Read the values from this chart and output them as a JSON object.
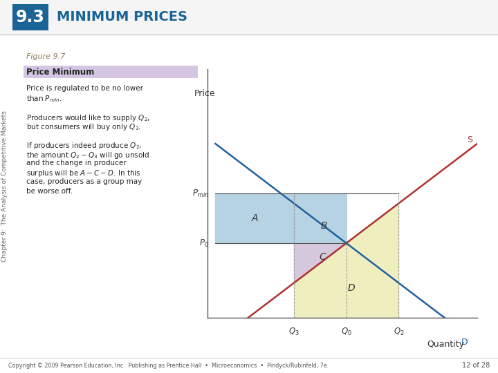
{
  "title_box_text": "9.3",
  "title_text": "MINIMUM PRICES",
  "subtitle_text": "Figure 9.7",
  "box_label": "Price Minimum",
  "side_label": "Chapter 9:  The Analysis of Competitive Markets",
  "footer": "Copyright © 2009 Pearson Education, Inc.  Publishing as Prentice Hall  •  Microeconomics  •  Pindyck/Rubinfeld, 7e.",
  "footer_right": "12 of 28",
  "xlabel": "Quantity",
  "ylabel": "Price",
  "supply_label": "S",
  "demand_label": "D",
  "q3": 3,
  "q0": 5,
  "q2": 7,
  "p0": 3,
  "pmin": 5,
  "supply_slope": 0.8,
  "demand_slope": -0.8,
  "supply_intercept": -1.0,
  "demand_intercept": 7.0,
  "x_max": 10,
  "y_max": 10,
  "title_box_bg": "#1a6496",
  "header_bg": "#f5f5f5",
  "box_label_bg": "#d4c5e2",
  "area_A_color": "#aacce0",
  "area_B_color": "#aacce0",
  "area_C_color": "#ddc8dc",
  "area_D_color": "#eeedb8",
  "supply_color": "#b03030",
  "demand_color": "#2060a0",
  "hline_color": "#555555",
  "vline_color": "#999999",
  "axis_color": "#333333",
  "label_color": "#555555",
  "fig_label_color": "#8b7a50",
  "title_text_color": "#1a6496",
  "body_text_color": "#222222"
}
